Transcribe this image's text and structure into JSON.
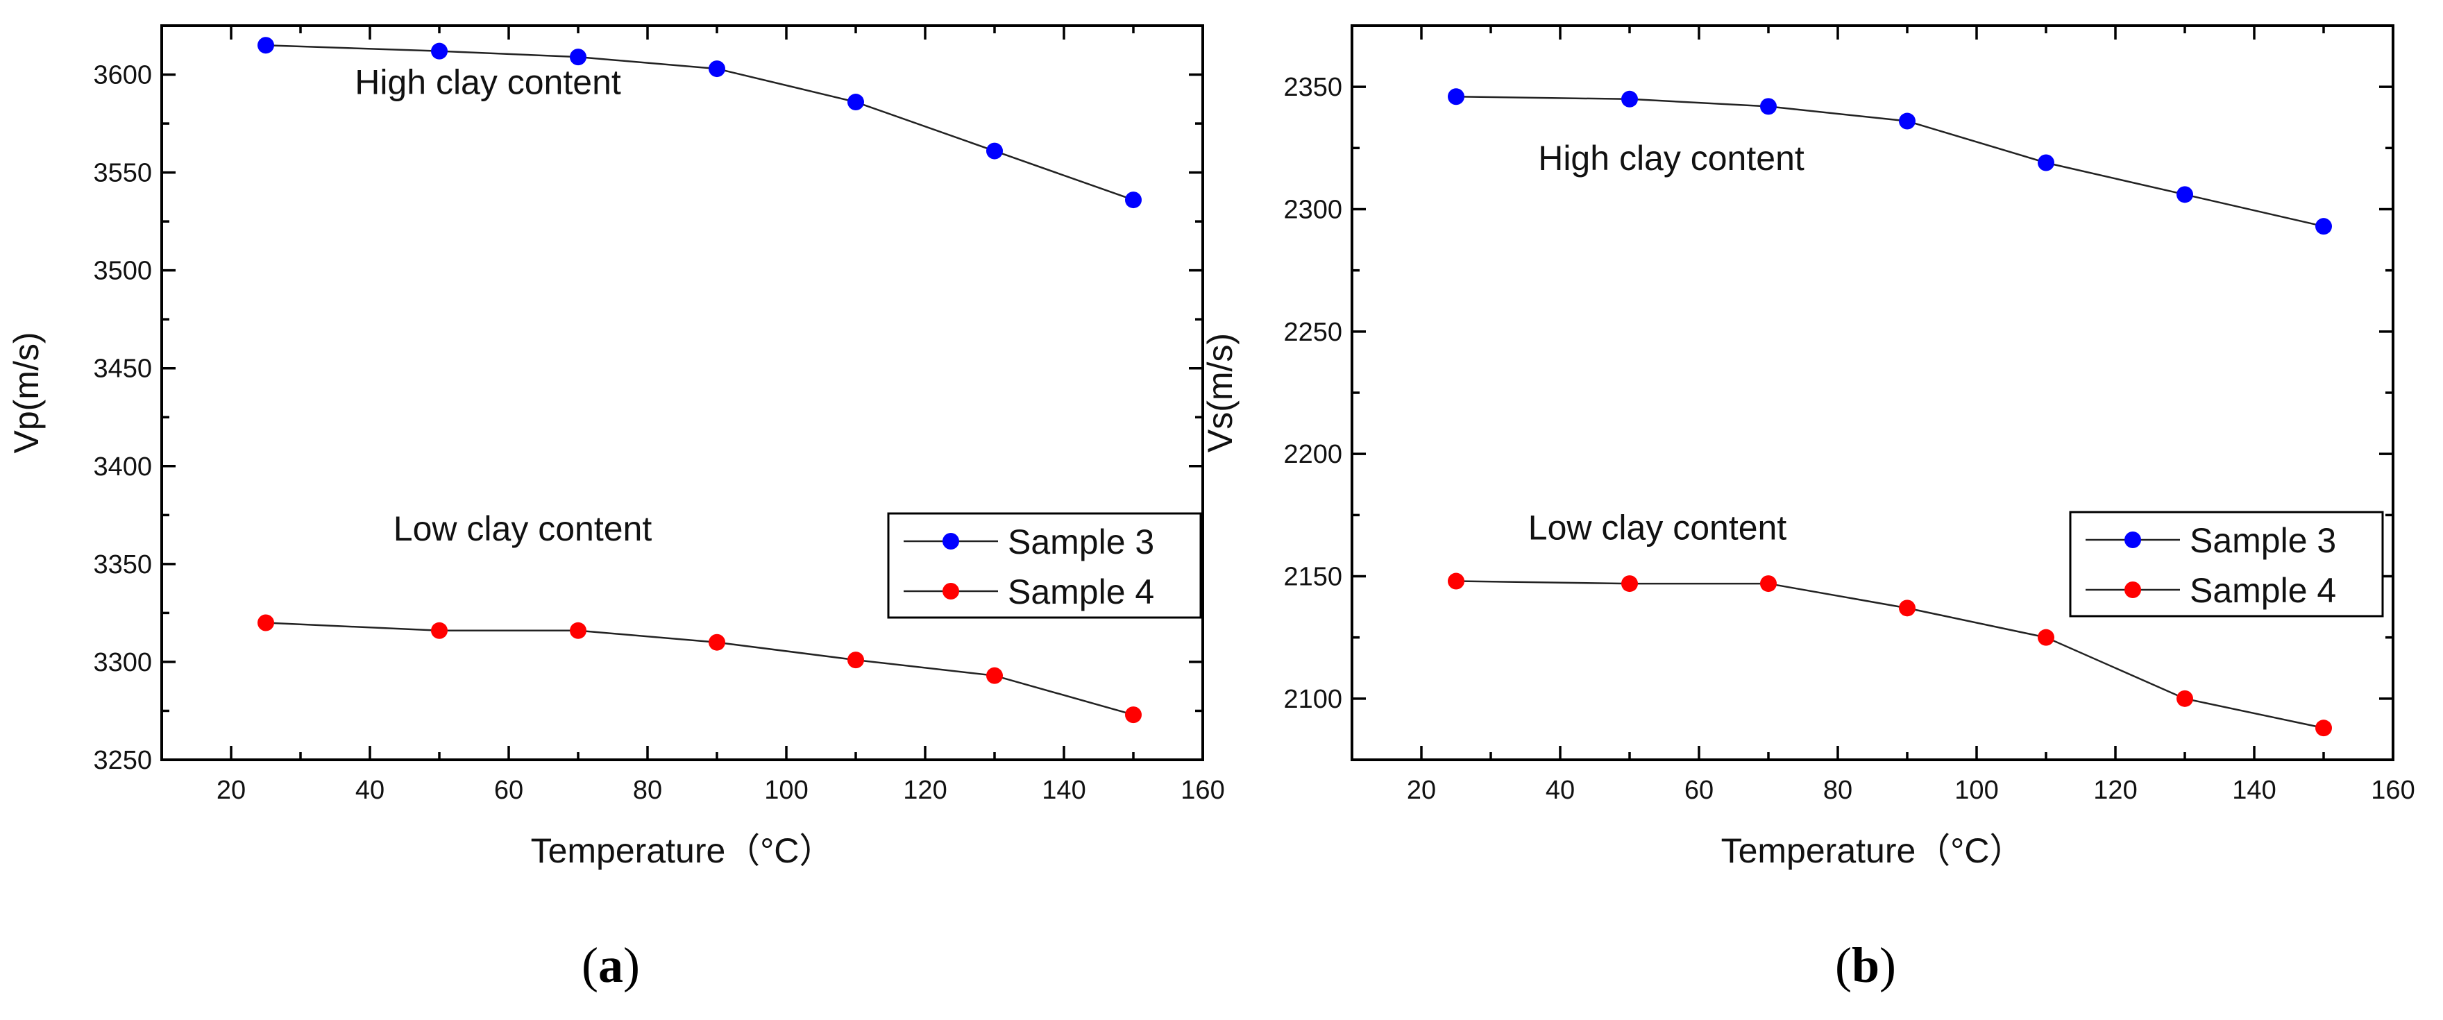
{
  "chart_data": [
    {
      "type": "line",
      "panel_label": "(a)",
      "panel_letter": "a",
      "xlabel": "Temperature（°C）",
      "ylabel": "Vp(m/s)",
      "xlim": [
        10,
        160
      ],
      "ylim": [
        3250,
        3625
      ],
      "xticks": [
        20,
        40,
        60,
        80,
        100,
        120,
        140,
        160
      ],
      "yticks": [
        3250,
        3300,
        3350,
        3400,
        3450,
        3500,
        3550,
        3600
      ],
      "legend_position": "right",
      "series": [
        {
          "name": "Sample 3",
          "color": "#0000ff",
          "x": [
            25,
            50,
            70,
            90,
            110,
            130,
            150
          ],
          "values": [
            3615,
            3612,
            3609,
            3603,
            3586,
            3561,
            3536
          ]
        },
        {
          "name": "Sample 4",
          "color": "#ff0000",
          "x": [
            25,
            50,
            70,
            90,
            110,
            130,
            150
          ],
          "values": [
            3320,
            3316,
            3316,
            3310,
            3301,
            3293,
            3273
          ]
        }
      ],
      "annotations": [
        {
          "text": "High clay content",
          "x": 57,
          "y": 3590
        },
        {
          "text": "Low clay content",
          "x": 62,
          "y": 3362
        }
      ]
    },
    {
      "type": "line",
      "panel_label": "(b)",
      "panel_letter": "b",
      "xlabel": "Temperature（°C）",
      "ylabel": "Vs(m/s)",
      "xlim": [
        10,
        160
      ],
      "ylim": [
        2075,
        2375
      ],
      "xticks": [
        20,
        40,
        60,
        80,
        100,
        120,
        140,
        160
      ],
      "yticks": [
        2100,
        2150,
        2200,
        2250,
        2300,
        2350
      ],
      "legend_position": "right",
      "series": [
        {
          "name": "Sample 3",
          "color": "#0000ff",
          "x": [
            25,
            50,
            70,
            90,
            110,
            130,
            150
          ],
          "values": [
            2346,
            2345,
            2342,
            2336,
            2319,
            2306,
            2293
          ]
        },
        {
          "name": "Sample 4",
          "color": "#ff0000",
          "x": [
            25,
            50,
            70,
            90,
            110,
            130,
            150
          ],
          "values": [
            2148,
            2147,
            2147,
            2137,
            2125,
            2100,
            2088
          ]
        }
      ],
      "annotations": [
        {
          "text": "High clay content",
          "x": 56,
          "y": 2316
        },
        {
          "text": "Low clay content",
          "x": 54,
          "y": 2165
        }
      ]
    }
  ]
}
